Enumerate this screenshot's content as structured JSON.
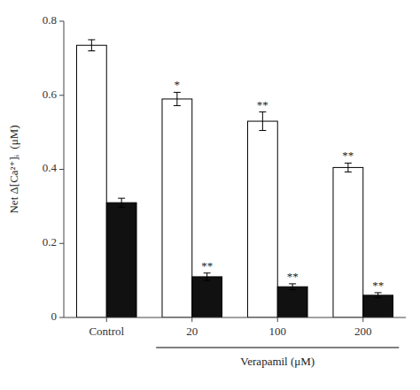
{
  "chart_data": {
    "type": "bar",
    "categories": [
      "Control",
      "20",
      "100",
      "200"
    ],
    "series": [
      {
        "color": "#ffffff",
        "values": [
          0.735,
          0.59,
          0.53,
          0.405
        ],
        "errors": [
          0.015,
          0.018,
          0.025,
          0.012
        ],
        "significance": [
          null,
          "*",
          "**",
          "**"
        ]
      },
      {
        "color": "#111111",
        "values": [
          0.31,
          0.11,
          0.083,
          0.06
        ],
        "errors": [
          0.012,
          0.01,
          0.008,
          0.007
        ],
        "significance": [
          null,
          "**",
          "**",
          "**"
        ]
      }
    ],
    "ylabel": "Net Δ[Ca²⁺]ᵢ  (μM)",
    "xlabel": "Verapamil (μM)",
    "xlabel_categories": [
      "20",
      "100",
      "200"
    ],
    "ylim": [
      0,
      0.8
    ],
    "yticks": [
      0,
      0.2,
      0.4,
      0.6,
      0.8
    ],
    "grid": false
  }
}
